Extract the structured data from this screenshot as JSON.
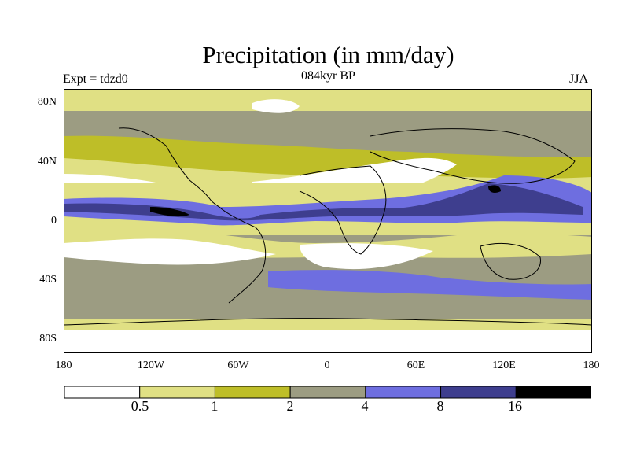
{
  "title": "Precipitation (in mm/day)",
  "labels": {
    "left": "Expt = tdzd0",
    "center": "084kyr BP",
    "right": "JJA"
  },
  "y_ticks": [
    "80N",
    "40N",
    "0",
    "40S",
    "80S"
  ],
  "x_ticks": [
    "180",
    "120W",
    "60W",
    "0",
    "60E",
    "120E",
    "180"
  ],
  "colorbar": {
    "levels": [
      "0.5",
      "1",
      "2",
      "4",
      "8",
      "16"
    ],
    "colors": [
      "#ffffff",
      "#e0e084",
      "#bebe28",
      "#9c9c82",
      "#6e6ee0",
      "#3e3e8e",
      "#000000"
    ]
  },
  "map_regions": [
    {
      "name": "arctic-band",
      "category": 1
    },
    {
      "name": "north-midlatitude-band",
      "category": 2
    },
    {
      "name": "subtropical-dry-belt",
      "category": 0
    },
    {
      "name": "itcz-pacific",
      "category": 5
    },
    {
      "name": "itcz-peak-east-pacific",
      "category": 6
    },
    {
      "name": "indian-monsoon",
      "category": 5
    },
    {
      "name": "west-pacific-warm-pool",
      "category": 5
    },
    {
      "name": "southern-dry-belt",
      "category": 0
    },
    {
      "name": "southern-storm-track",
      "category": 4
    },
    {
      "name": "antarctic-band",
      "category": 0
    }
  ]
}
